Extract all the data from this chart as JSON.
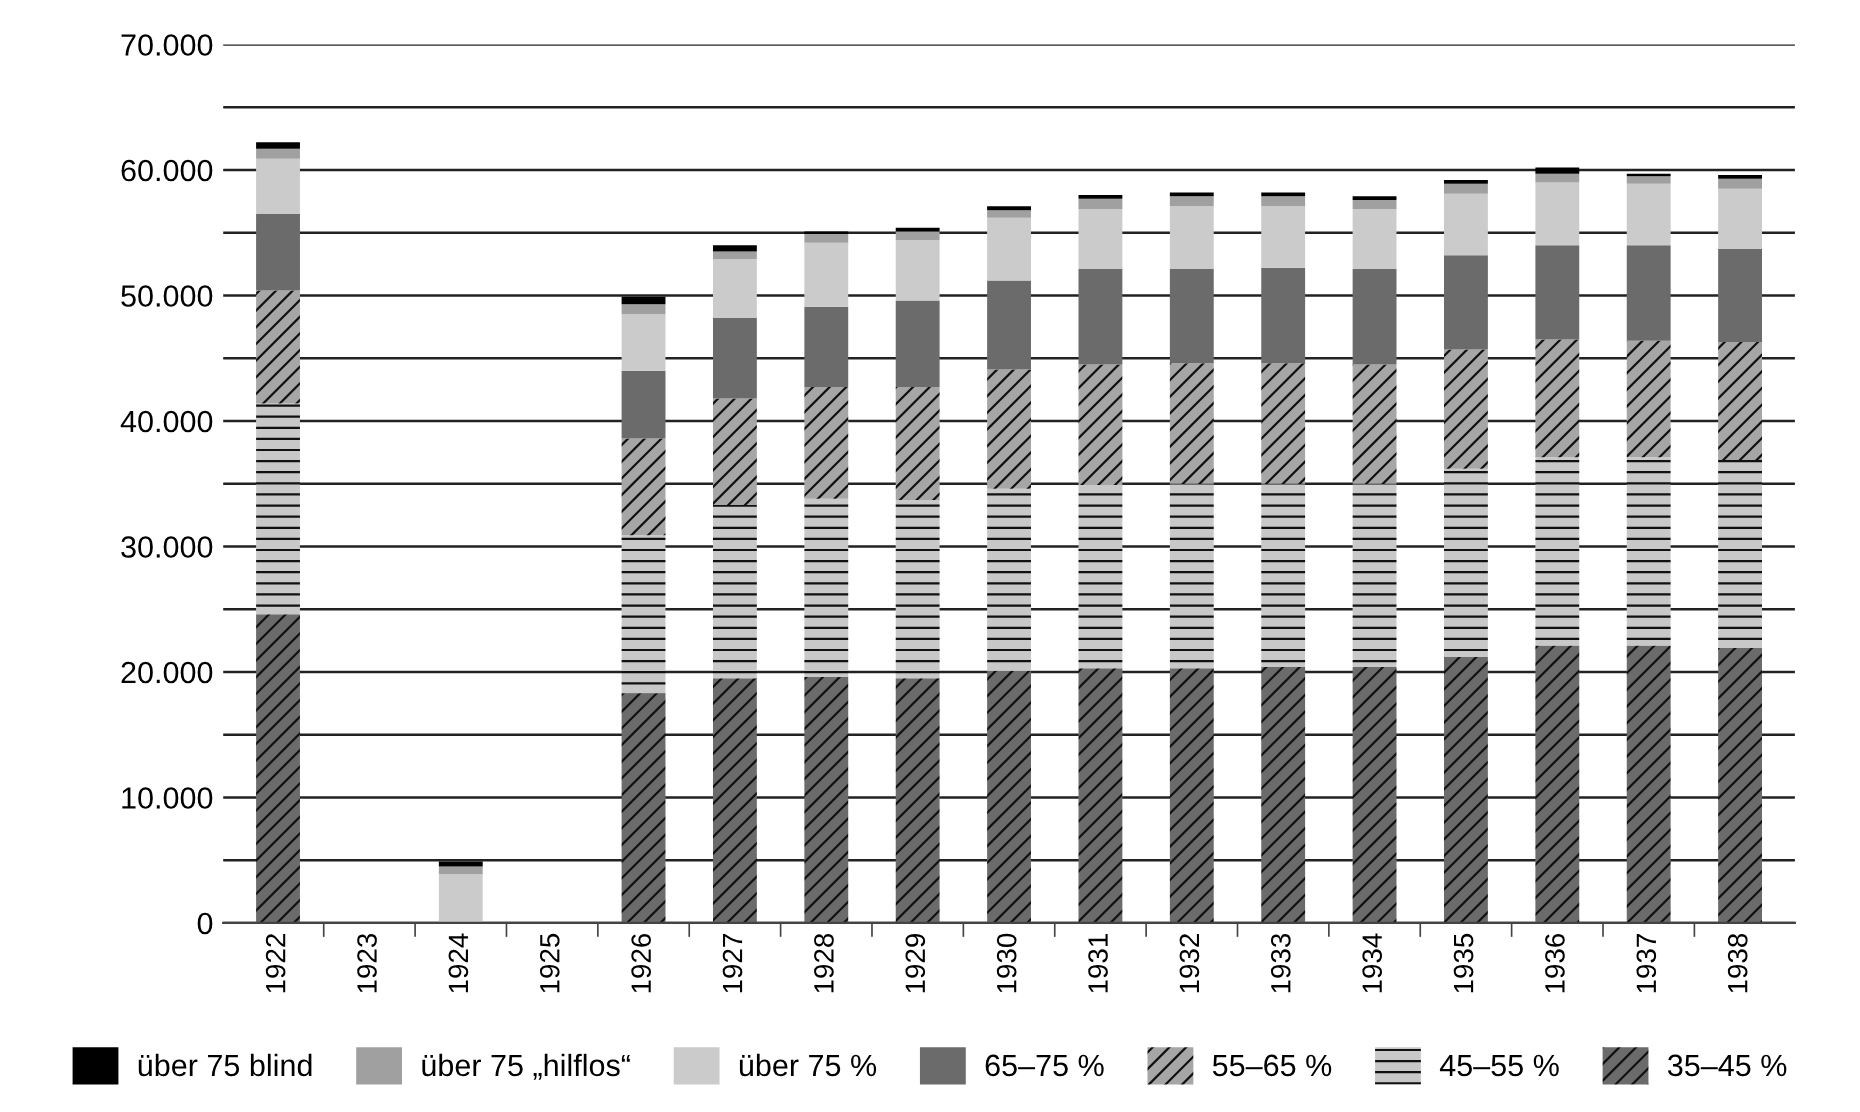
{
  "chart_data": {
    "type": "bar",
    "stacked": true,
    "categories": [
      "1922",
      "1923",
      "1924",
      "1925",
      "1926",
      "1927",
      "1928",
      "1929",
      "1930",
      "1931",
      "1932",
      "1933",
      "1934",
      "1935",
      "1936",
      "1937",
      "1938"
    ],
    "series": [
      {
        "name": "35–45 %",
        "color": "#6b6b6b",
        "values": [
          24600,
          null,
          0,
          null,
          18300,
          19500,
          19600,
          19500,
          20100,
          20300,
          20300,
          20400,
          20400,
          21200,
          22100,
          22100,
          21900
        ]
      },
      {
        "name": "45–55 %",
        "color": "#c8c8c8",
        "values": [
          16800,
          null,
          0,
          null,
          12600,
          13800,
          14200,
          14200,
          14500,
          14600,
          14700,
          14600,
          14600,
          15000,
          15000,
          15000,
          15000
        ]
      },
      {
        "name": "55–65 %",
        "color": "#a6a6a6",
        "values": [
          9000,
          null,
          0,
          null,
          7700,
          8500,
          8900,
          9000,
          9500,
          9600,
          9600,
          9600,
          9500,
          9500,
          9400,
          9300,
          9400
        ]
      },
      {
        "name": "65–75 %",
        "color": "#6b6b6b",
        "values": [
          6100,
          null,
          0,
          null,
          5400,
          6400,
          6400,
          6900,
          7100,
          7600,
          7500,
          7600,
          7600,
          7500,
          7500,
          7600,
          7400
        ]
      },
      {
        "name": "über 75 %",
        "color": "#cbcbcb",
        "values": [
          4400,
          null,
          3900,
          null,
          4500,
          4700,
          5100,
          4800,
          5000,
          4800,
          5000,
          4900,
          4800,
          4900,
          5000,
          4900,
          4800
        ]
      },
      {
        "name": "über 75 „hilflos“",
        "color": "#a0a0a0",
        "values": [
          800,
          null,
          600,
          null,
          800,
          600,
          700,
          700,
          600,
          800,
          800,
          800,
          700,
          800,
          700,
          600,
          800
        ]
      },
      {
        "name": "über 75 blind",
        "color": "#000000",
        "values": [
          500,
          null,
          400,
          null,
          600,
          500,
          200,
          300,
          300,
          300,
          300,
          300,
          300,
          300,
          500,
          200,
          300
        ]
      }
    ],
    "ylim": [
      0,
      70000
    ],
    "yticks": [
      0,
      {
        "value": 5000,
        "label": null
      },
      {
        "value": 10000,
        "label": "10.000"
      },
      {
        "value": 15000,
        "label": null
      },
      {
        "value": 20000,
        "label": "20.000"
      },
      {
        "value": 25000,
        "label": null
      },
      {
        "value": 30000,
        "label": "30.000"
      },
      {
        "value": 35000,
        "label": null
      },
      {
        "value": 40000,
        "label": "40.000"
      },
      {
        "value": 45000,
        "label": null
      },
      {
        "value": 50000,
        "label": "50.000"
      },
      {
        "value": 55000,
        "label": null
      },
      {
        "value": 60000,
        "label": "60.000"
      },
      {
        "value": 65000,
        "label": null
      },
      {
        "value": 70000,
        "label": "70.000"
      }
    ],
    "grid": "y",
    "legend": "bottom"
  }
}
